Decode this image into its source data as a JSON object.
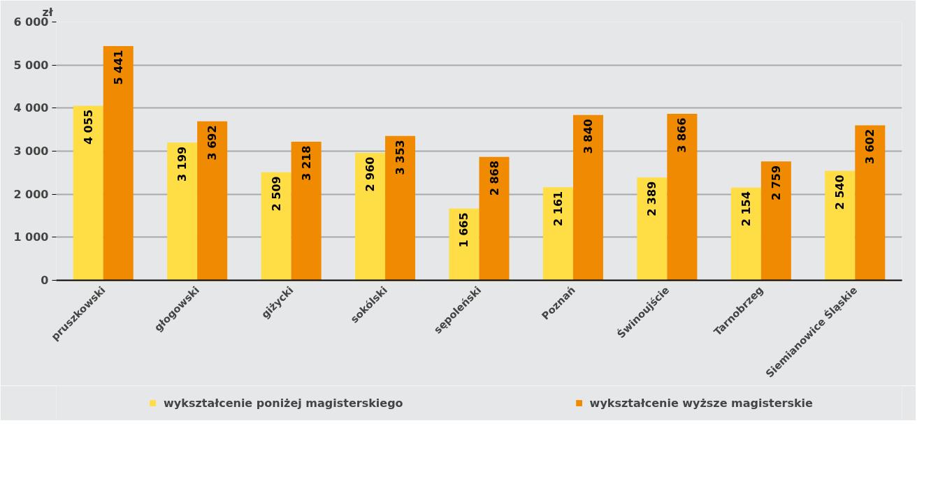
{
  "chart_data": {
    "type": "bar",
    "ylabel": "zł",
    "categories": [
      "pruszkowski",
      "głogowski",
      "giżycki",
      "sokólski",
      "sępoleński",
      "Poznań",
      "Świnoujście",
      "Tarnobrzeg",
      "Siemianowice Śląskie"
    ],
    "series": [
      {
        "name": "wykształcenie poniżej magisterskiego",
        "color": "#ffde45",
        "values": [
          4055,
          3199,
          2509,
          2960,
          1665,
          2161,
          2389,
          2154,
          2540
        ]
      },
      {
        "name": "wykształcenie wyższe magisterskie",
        "color": "#f08a00",
        "values": [
          5441,
          3692,
          3218,
          3353,
          2868,
          3840,
          3866,
          2759,
          3602
        ]
      }
    ],
    "ylim": [
      0,
      6000
    ],
    "yticks": [
      0,
      {
        "value": 1000,
        "label": "1 000"
      },
      {
        "value": 2000,
        "label": "2 000"
      },
      {
        "value": 3000,
        "label": "3 000"
      },
      {
        "value": 4000,
        "label": "4 000"
      },
      {
        "value": 5000,
        "label": "5 000"
      },
      {
        "value": 6000,
        "label": "6 000"
      }
    ],
    "grid": "y",
    "legend": "bottom",
    "data_labels": true
  }
}
